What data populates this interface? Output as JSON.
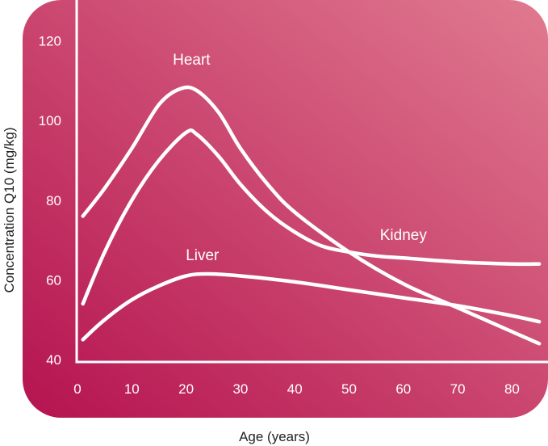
{
  "chart_data": {
    "type": "line",
    "xlabel": "Age (years)",
    "ylabel": "Concentration Q10 (mg/kg)",
    "xlim": [
      0,
      85
    ],
    "ylim": [
      40,
      125
    ],
    "x_ticks": [
      0,
      10,
      20,
      30,
      40,
      50,
      60,
      70,
      80
    ],
    "y_ticks": [
      40,
      60,
      80,
      100,
      120
    ],
    "grid": false,
    "series": [
      {
        "name": "Heart",
        "points": [
          [
            1,
            76
          ],
          [
            5,
            83
          ],
          [
            10,
            93
          ],
          [
            15,
            104
          ],
          [
            19,
            108
          ],
          [
            22,
            107.5
          ],
          [
            26,
            102
          ],
          [
            30,
            93
          ],
          [
            35,
            84
          ],
          [
            40,
            77
          ],
          [
            50,
            67
          ],
          [
            60,
            59
          ],
          [
            70,
            53
          ],
          [
            80,
            47
          ],
          [
            85,
            44
          ]
        ]
      },
      {
        "name": "Kidney",
        "points": [
          [
            1,
            54
          ],
          [
            5,
            67
          ],
          [
            10,
            80
          ],
          [
            15,
            90
          ],
          [
            20,
            97
          ],
          [
            22,
            96.5
          ],
          [
            26,
            91
          ],
          [
            30,
            84
          ],
          [
            35,
            77
          ],
          [
            40,
            72
          ],
          [
            45,
            68.5
          ],
          [
            50,
            67
          ],
          [
            55,
            66
          ],
          [
            60,
            65.5
          ],
          [
            70,
            64.5
          ],
          [
            80,
            64
          ],
          [
            85,
            64
          ]
        ]
      },
      {
        "name": "Liver",
        "points": [
          [
            1,
            45
          ],
          [
            5,
            50
          ],
          [
            10,
            55
          ],
          [
            15,
            58.5
          ],
          [
            20,
            61
          ],
          [
            24,
            61.5
          ],
          [
            30,
            61
          ],
          [
            40,
            59.5
          ],
          [
            50,
            57.5
          ],
          [
            60,
            55.5
          ],
          [
            70,
            53.5
          ],
          [
            80,
            51
          ],
          [
            85,
            49.5
          ]
        ]
      }
    ],
    "annotations": [
      {
        "text": "Heart",
        "x": 21,
        "y": 114
      },
      {
        "text": "Kidney",
        "x": 60,
        "y": 70
      },
      {
        "text": "Liver",
        "x": 23,
        "y": 65
      }
    ]
  },
  "colors": {
    "background_light": "#e07a90",
    "background_dark": "#b5134f",
    "line": "#ffffff"
  }
}
